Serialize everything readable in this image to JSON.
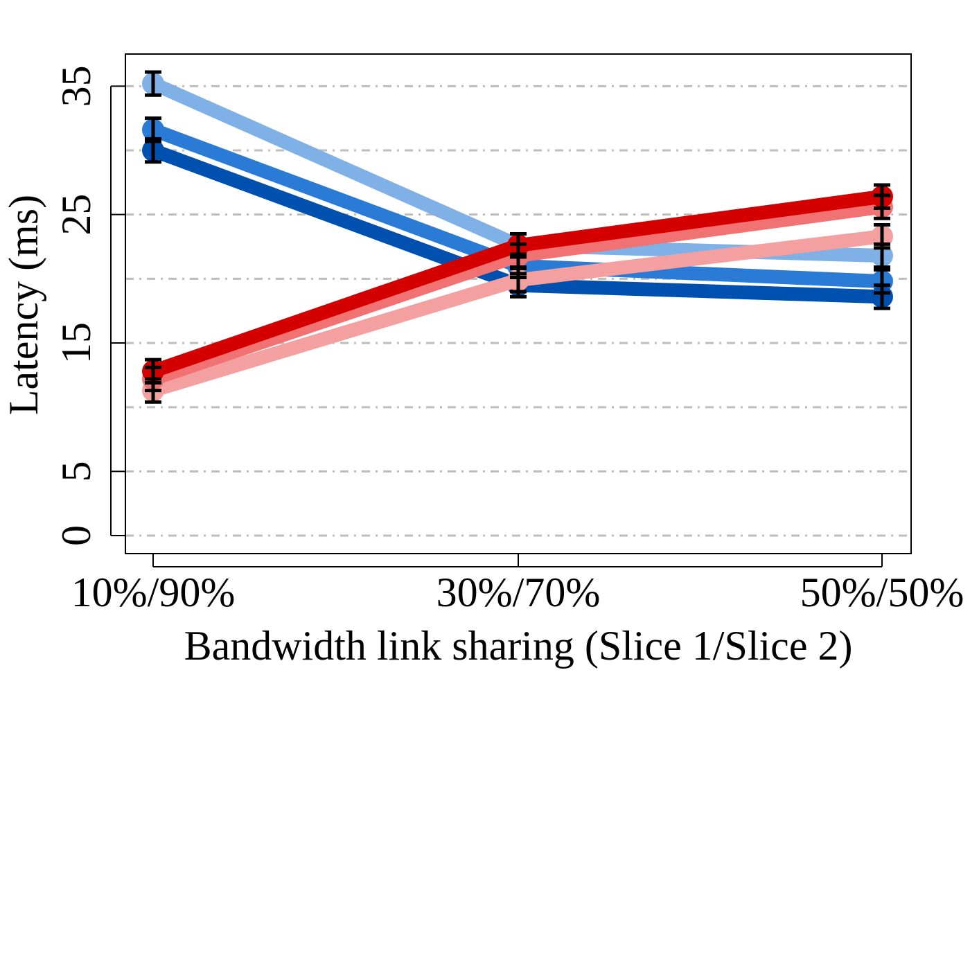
{
  "chart_data": {
    "type": "line",
    "title": "",
    "xlabel": "Bandwidth link sharing (Slice 1/Slice 2)",
    "ylabel": "Latency (ms)",
    "categories": [
      "10%/90%",
      "30%/70%",
      "50%/50%"
    ],
    "ylim": [
      -1.4,
      37.5
    ],
    "yticks": [
      0,
      5,
      15,
      25,
      35
    ],
    "gridlines": [
      0,
      5,
      10,
      15,
      20,
      25,
      30,
      35
    ],
    "grid": "horizontal dash-dot, gray",
    "legend": "none",
    "series": [
      {
        "color": "#7fb0e6",
        "values": [
          35.2,
          22.6,
          21.8
        ],
        "errors": [
          0.9,
          0.9,
          0.9
        ]
      },
      {
        "color": "#2a7bd6",
        "values": [
          31.6,
          21.0,
          19.8
        ],
        "errors": [
          0.9,
          0.9,
          0.9
        ]
      },
      {
        "color": "#0050b0",
        "values": [
          30.0,
          19.5,
          18.6
        ],
        "errors": [
          0.9,
          0.9,
          0.9
        ]
      },
      {
        "color": "#f5a0a0",
        "values": [
          11.3,
          19.9,
          23.3
        ],
        "errors": [
          0.9,
          0.9,
          0.9
        ]
      },
      {
        "color": "#f07272",
        "values": [
          12.2,
          21.8,
          25.6
        ],
        "errors": [
          0.9,
          0.9,
          0.9
        ]
      },
      {
        "color": "#d40000",
        "values": [
          12.8,
          22.6,
          26.4
        ],
        "errors": [
          0.9,
          0.9,
          0.9
        ]
      }
    ]
  }
}
